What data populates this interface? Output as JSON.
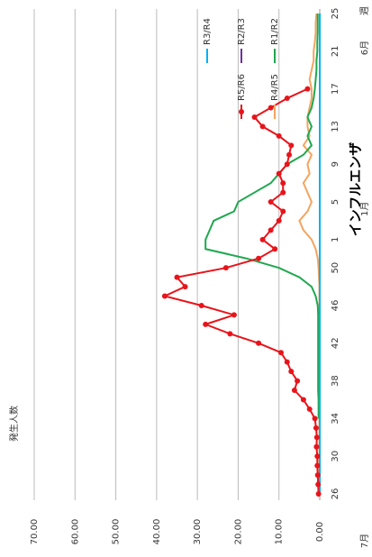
{
  "chart_data": {
    "type": "line",
    "title": "インフルエンザ",
    "y_label": "発生人数",
    "x_label": "週",
    "month_labels": [
      "7月",
      "1月",
      "6月"
    ],
    "categories": [
      "26",
      null,
      null,
      null,
      "30",
      null,
      null,
      null,
      "34",
      null,
      null,
      null,
      "38",
      null,
      null,
      null,
      "42",
      null,
      null,
      null,
      "46",
      null,
      null,
      null,
      "50",
      null,
      null,
      "1",
      null,
      null,
      null,
      "5",
      null,
      null,
      null,
      "9",
      null,
      null,
      null,
      "13",
      null,
      null,
      null,
      "17",
      null,
      null,
      null,
      "21",
      null,
      null,
      null,
      "25"
    ],
    "ylim": [
      0,
      70
    ],
    "yticks": [
      {
        "value": 0,
        "label": "0.00"
      },
      {
        "value": 10,
        "label": "10.00"
      },
      {
        "value": 20,
        "label": "20.00"
      },
      {
        "value": 30,
        "label": "30.00"
      },
      {
        "value": 40,
        "label": "40.00"
      },
      {
        "value": 50,
        "label": "50.00"
      },
      {
        "value": 60,
        "label": "60.00"
      },
      {
        "value": 70,
        "label": "70.00"
      }
    ],
    "grid": true,
    "series": [
      {
        "name": "R1/R2",
        "color": "#1fa84f",
        "marker": false,
        "values": [
          null,
          null,
          null,
          null,
          null,
          null,
          null,
          null,
          0.3,
          0.3,
          0.3,
          0.4,
          0.4,
          0.4,
          0.4,
          0.4,
          0.4,
          0.4,
          0.4,
          0.4,
          0.5,
          1,
          2,
          5,
          10,
          18,
          28,
          28,
          27,
          26,
          21,
          20,
          16,
          12,
          10,
          8,
          4,
          2,
          3,
          2,
          3,
          2,
          1.5,
          1.2,
          1,
          0.8,
          0.8,
          0.6,
          0.6,
          0.5,
          0.5,
          0.5
        ]
      },
      {
        "name": "R2/R3",
        "color": "#7030a0",
        "marker": false,
        "values": [
          0,
          0,
          0,
          0,
          0,
          0,
          0,
          0,
          0,
          0,
          0,
          0,
          0,
          0,
          0,
          0,
          0,
          0,
          0,
          0,
          0,
          0,
          0,
          0,
          0,
          0,
          0,
          0,
          0,
          0,
          0,
          0,
          0,
          0,
          0,
          0,
          0,
          0,
          0,
          0,
          0,
          0,
          0,
          0,
          0,
          0,
          0,
          0,
          0,
          0,
          0,
          0
        ]
      },
      {
        "name": "R3/R4",
        "color": "#00b0f0",
        "marker": false,
        "values": [
          0,
          0,
          0,
          0,
          0,
          0,
          0,
          0,
          0,
          0,
          0,
          0,
          0,
          0,
          0,
          0,
          0,
          0,
          0,
          0,
          0,
          0,
          0,
          0,
          0,
          0,
          0,
          0,
          0,
          0,
          0,
          0,
          0,
          0,
          0,
          0,
          0,
          0,
          0,
          0,
          0,
          0,
          0,
          0,
          0,
          0,
          0,
          0,
          0,
          0,
          0,
          0
        ]
      },
      {
        "name": "R4/R5",
        "color": "#f4a460",
        "marker": false,
        "values": [
          0.1,
          0.1,
          0.1,
          0.1,
          0.1,
          0.1,
          0.1,
          0.1,
          0.1,
          0.1,
          0.1,
          0.1,
          0.1,
          0.1,
          0.1,
          0.1,
          0.1,
          0.1,
          0.1,
          0.1,
          0.1,
          0.1,
          0.1,
          0.2,
          0.3,
          0.5,
          1,
          2,
          4,
          5,
          3,
          2,
          3,
          4,
          2.5,
          3,
          2,
          4,
          2.5,
          3,
          3,
          2.5,
          2,
          2,
          2.5,
          2,
          1.5,
          1.5,
          1.2,
          1,
          1,
          0.8
        ]
      },
      {
        "name": "R5/R6",
        "color": "#e8141b",
        "marker": true,
        "values": [
          0.3,
          0.4,
          0.5,
          0.6,
          0.6,
          0.8,
          0.7,
          0.9,
          1.2,
          2.5,
          4,
          6.2,
          5.5,
          7,
          8,
          9.5,
          15,
          22,
          28,
          21,
          29,
          38,
          33,
          35,
          23,
          15,
          11,
          14,
          12,
          10,
          9,
          12,
          9,
          9,
          10,
          8,
          7.5,
          7,
          10,
          14,
          16,
          12,
          8,
          3,
          null,
          null,
          null,
          null,
          null,
          null,
          null,
          null
        ]
      }
    ]
  }
}
